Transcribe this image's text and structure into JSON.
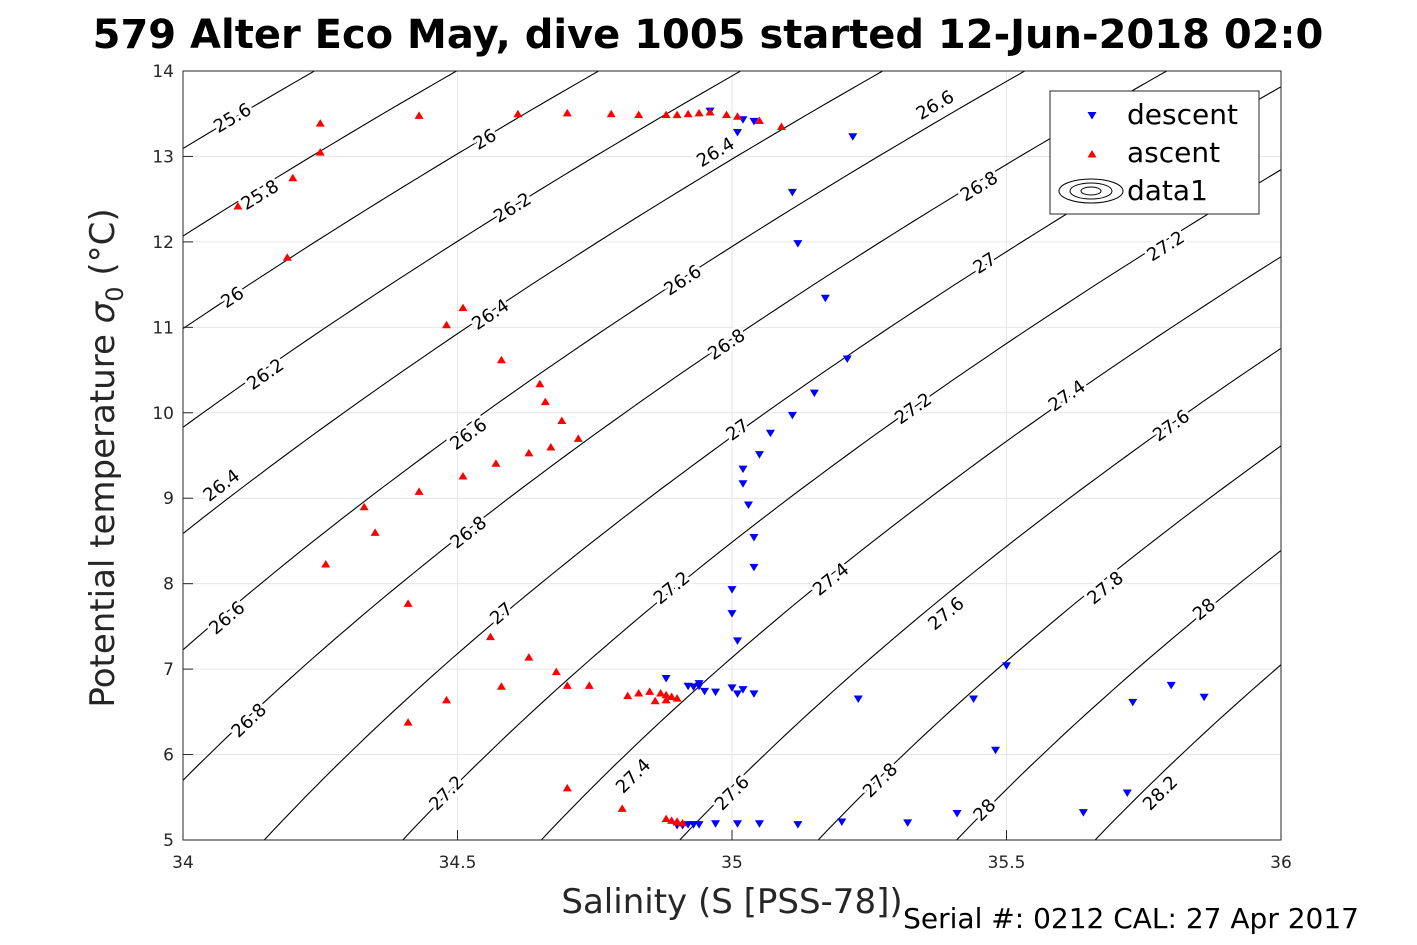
{
  "chart_data": {
    "type": "scatter",
    "title": "579 Alter Eco May, dive 1005 started 12-Jun-2018 02:0",
    "xlabel": "Salinity (S [PSS-78])",
    "ylabel_main": "Potential temperature ",
    "ylabel_symbol": "σ",
    "ylabel_sub": "0",
    "ylabel_unit": " (°C)",
    "footer": "Serial #: 0212  CAL: 27 Apr 2017",
    "xlim": [
      34,
      36
    ],
    "ylim": [
      5,
      14
    ],
    "xticks": [
      34,
      34.5,
      35,
      35.5,
      36
    ],
    "xtick_labels": [
      "34",
      "34.5",
      "35",
      "35.5",
      "36"
    ],
    "yticks": [
      5,
      6,
      7,
      8,
      9,
      10,
      11,
      12,
      13,
      14
    ],
    "ytick_labels": [
      "5",
      "6",
      "7",
      "8",
      "9",
      "10",
      "11",
      "12",
      "13",
      "14"
    ],
    "grid": true,
    "legend_position": "top-right",
    "legend": [
      "descent",
      "ascent",
      "data1"
    ],
    "contours": {
      "levels": [
        25.6,
        25.8,
        26,
        26.2,
        26.4,
        26.6,
        26.8,
        27,
        27.2,
        27.4,
        27.6,
        27.8,
        28,
        28.2
      ],
      "labels": [
        {
          "text": "25.6",
          "x": 34.09,
          "y": 13.45
        },
        {
          "text": "25.8",
          "x": 34.14,
          "y": 12.55
        },
        {
          "text": "26",
          "x": 34.09,
          "y": 11.35
        },
        {
          "text": "26",
          "x": 34.55,
          "y": 13.2
        },
        {
          "text": "26.2",
          "x": 34.15,
          "y": 10.45
        },
        {
          "text": "26.2",
          "x": 34.6,
          "y": 12.4
        },
        {
          "text": "26.4",
          "x": 34.07,
          "y": 9.15
        },
        {
          "text": "26.4",
          "x": 34.56,
          "y": 11.15
        },
        {
          "text": "26.4",
          "x": 34.97,
          "y": 13.05
        },
        {
          "text": "26.6",
          "x": 34.08,
          "y": 7.6
        },
        {
          "text": "26.6",
          "x": 34.52,
          "y": 9.75
        },
        {
          "text": "26.6",
          "x": 34.91,
          "y": 11.55
        },
        {
          "text": "26.6",
          "x": 35.37,
          "y": 13.6
        },
        {
          "text": "26.8",
          "x": 34.12,
          "y": 6.4
        },
        {
          "text": "26.8",
          "x": 34.52,
          "y": 8.6
        },
        {
          "text": "26.8",
          "x": 34.99,
          "y": 10.8
        },
        {
          "text": "26.8",
          "x": 35.45,
          "y": 12.65
        },
        {
          "text": "27",
          "x": 34.58,
          "y": 7.65
        },
        {
          "text": "27",
          "x": 35.01,
          "y": 9.8
        },
        {
          "text": "27",
          "x": 35.46,
          "y": 11.75
        },
        {
          "text": "27.2",
          "x": 34.48,
          "y": 5.55
        },
        {
          "text": "27.2",
          "x": 34.89,
          "y": 7.95
        },
        {
          "text": "27.2",
          "x": 35.33,
          "y": 10.05
        },
        {
          "text": "27.2",
          "x": 35.79,
          "y": 11.95
        },
        {
          "text": "27.4",
          "x": 34.82,
          "y": 5.75
        },
        {
          "text": "27.4",
          "x": 35.18,
          "y": 8.05
        },
        {
          "text": "27.4",
          "x": 35.61,
          "y": 10.2
        },
        {
          "text": "27.6",
          "x": 35.0,
          "y": 5.55
        },
        {
          "text": "27.6",
          "x": 35.39,
          "y": 7.65
        },
        {
          "text": "27.6",
          "x": 35.8,
          "y": 9.85
        },
        {
          "text": "27.8",
          "x": 35.27,
          "y": 5.7
        },
        {
          "text": "27.8",
          "x": 35.68,
          "y": 7.95
        },
        {
          "text": "28",
          "x": 35.46,
          "y": 5.35
        },
        {
          "text": "28",
          "x": 35.86,
          "y": 7.7
        },
        {
          "text": "28.2",
          "x": 35.78,
          "y": 5.55
        }
      ]
    },
    "series": [
      {
        "name": "descent",
        "color": "#0000ff",
        "marker": "triangle-down",
        "points": [
          [
            34.96,
            13.53
          ],
          [
            35.02,
            13.43
          ],
          [
            35.04,
            13.41
          ],
          [
            35.01,
            13.28
          ],
          [
            35.22,
            13.23
          ],
          [
            35.11,
            12.58
          ],
          [
            35.12,
            11.98
          ],
          [
            35.17,
            11.34
          ],
          [
            35.21,
            10.63
          ],
          [
            35.15,
            10.23
          ],
          [
            35.11,
            9.97
          ],
          [
            35.07,
            9.76
          ],
          [
            35.05,
            9.51
          ],
          [
            35.02,
            9.34
          ],
          [
            35.02,
            9.17
          ],
          [
            35.03,
            8.92
          ],
          [
            35.04,
            8.54
          ],
          [
            35.04,
            8.19
          ],
          [
            35.0,
            7.93
          ],
          [
            35.0,
            7.65
          ],
          [
            35.01,
            7.33
          ],
          [
            35.5,
            7.04
          ],
          [
            35.8,
            6.81
          ],
          [
            35.86,
            6.67
          ],
          [
            35.73,
            6.61
          ],
          [
            35.44,
            6.65
          ],
          [
            35.23,
            6.65
          ],
          [
            35.04,
            6.71
          ],
          [
            35.01,
            6.71
          ],
          [
            35.02,
            6.76
          ],
          [
            35.0,
            6.78
          ],
          [
            34.97,
            6.73
          ],
          [
            34.94,
            6.8
          ],
          [
            34.93,
            6.79
          ],
          [
            34.92,
            6.8
          ],
          [
            34.94,
            6.83
          ],
          [
            34.95,
            6.74
          ],
          [
            34.88,
            6.89
          ],
          [
            35.48,
            6.05
          ],
          [
            35.72,
            5.55
          ],
          [
            35.64,
            5.32
          ],
          [
            35.41,
            5.31
          ],
          [
            35.32,
            5.2
          ],
          [
            35.2,
            5.21
          ],
          [
            35.12,
            5.18
          ],
          [
            35.05,
            5.19
          ],
          [
            35.01,
            5.19
          ],
          [
            34.97,
            5.19
          ],
          [
            34.94,
            5.18
          ],
          [
            34.93,
            5.18
          ],
          [
            34.92,
            5.18
          ],
          [
            34.91,
            5.17
          ],
          [
            34.9,
            5.17
          ]
        ]
      },
      {
        "name": "ascent",
        "color": "#ff0000",
        "marker": "triangle-up",
        "points": [
          [
            34.25,
            13.39
          ],
          [
            34.43,
            13.48
          ],
          [
            34.61,
            13.5
          ],
          [
            34.7,
            13.51
          ],
          [
            34.78,
            13.5
          ],
          [
            34.83,
            13.49
          ],
          [
            34.88,
            13.49
          ],
          [
            34.9,
            13.49
          ],
          [
            34.92,
            13.5
          ],
          [
            34.94,
            13.51
          ],
          [
            34.96,
            13.52
          ],
          [
            34.99,
            13.49
          ],
          [
            35.01,
            13.47
          ],
          [
            35.05,
            13.42
          ],
          [
            35.09,
            13.35
          ],
          [
            34.25,
            13.05
          ],
          [
            34.2,
            12.75
          ],
          [
            34.1,
            12.42
          ],
          [
            34.19,
            11.82
          ],
          [
            34.51,
            11.23
          ],
          [
            34.48,
            11.03
          ],
          [
            34.58,
            10.62
          ],
          [
            34.65,
            10.34
          ],
          [
            34.66,
            10.13
          ],
          [
            34.69,
            9.91
          ],
          [
            34.72,
            9.7
          ],
          [
            34.67,
            9.6
          ],
          [
            34.63,
            9.53
          ],
          [
            34.57,
            9.41
          ],
          [
            34.51,
            9.26
          ],
          [
            34.43,
            9.08
          ],
          [
            34.33,
            8.9
          ],
          [
            34.35,
            8.6
          ],
          [
            34.26,
            8.23
          ],
          [
            34.41,
            7.77
          ],
          [
            34.56,
            7.38
          ],
          [
            34.63,
            7.14
          ],
          [
            34.68,
            6.97
          ],
          [
            34.7,
            6.81
          ],
          [
            34.74,
            6.81
          ],
          [
            34.58,
            6.8
          ],
          [
            34.81,
            6.69
          ],
          [
            34.83,
            6.72
          ],
          [
            34.85,
            6.74
          ],
          [
            34.87,
            6.72
          ],
          [
            34.88,
            6.7
          ],
          [
            34.89,
            6.68
          ],
          [
            34.9,
            6.66
          ],
          [
            34.88,
            6.64
          ],
          [
            34.86,
            6.63
          ],
          [
            34.48,
            6.64
          ],
          [
            34.41,
            6.38
          ],
          [
            34.7,
            5.61
          ],
          [
            34.8,
            5.37
          ],
          [
            34.88,
            5.25
          ],
          [
            34.89,
            5.23
          ],
          [
            34.9,
            5.22
          ],
          [
            34.9,
            5.21
          ],
          [
            34.91,
            5.2
          ]
        ]
      }
    ]
  }
}
